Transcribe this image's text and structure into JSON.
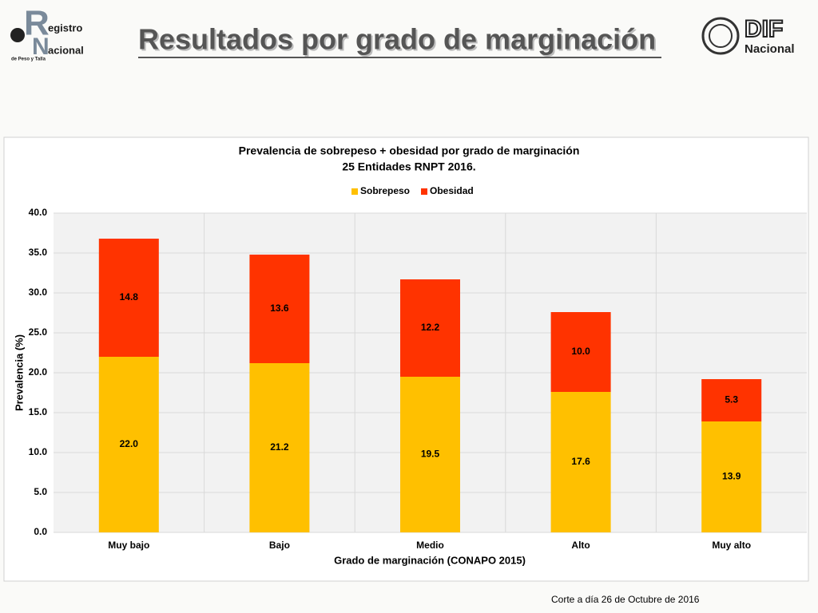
{
  "slide": {
    "title": "Resultados por grado de marginación",
    "logo_left": {
      "initial_1": "R",
      "word_1": "egistro",
      "initial_2": "N",
      "word_2": "acional",
      "subtitle": "de Peso y Talla"
    },
    "logo_right": {
      "word_1": "DIF",
      "word_2": "Nacional"
    },
    "footer": "Corte a día 26 de Octubre de 2016"
  },
  "chart_data": {
    "type": "stacked_bar",
    "title": "Prevalencia de sobrepeso + obesidad por grado de marginación",
    "subtitle": "25 Entidades RNPT 2016.",
    "x_label": "Grado de marginación  (CONAPO 2015)",
    "y_label": "Prevalencia (%)",
    "categories": [
      "Muy bajo",
      "Bajo",
      "Medio",
      "Alto",
      "Muy alto"
    ],
    "series": [
      {
        "name": "Sobrepeso",
        "color": "#FFC000",
        "values": [
          22.0,
          21.2,
          19.5,
          17.6,
          13.9
        ],
        "value_labels": [
          "22.0",
          "21.2",
          "19.5",
          "17.6",
          "13.9"
        ]
      },
      {
        "name": "Obesidad",
        "color": "#FF3300",
        "values": [
          14.8,
          13.6,
          12.2,
          10.0,
          5.3
        ],
        "value_labels": [
          "14.8",
          "13.6",
          "12.2",
          "10.0",
          "5.3"
        ]
      }
    ],
    "ylim": [
      0,
      40
    ],
    "yticks": [
      {
        "value": 0,
        "label": "0.0"
      },
      {
        "value": 5,
        "label": "5.0"
      },
      {
        "value": 10,
        "label": "10.0"
      },
      {
        "value": 15,
        "label": "15.0"
      },
      {
        "value": 20,
        "label": "20.0"
      },
      {
        "value": 25,
        "label": "25.0"
      },
      {
        "value": 30,
        "label": "30.0"
      },
      {
        "value": 35,
        "label": "35.0"
      },
      {
        "value": 40,
        "label": "40.0"
      }
    ],
    "grid": true,
    "legend": "top"
  }
}
